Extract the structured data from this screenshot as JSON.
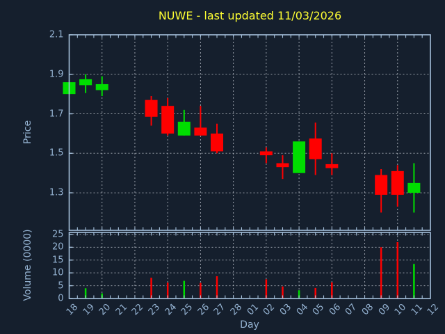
{
  "title": "NUWE - last updated 11/03/2026",
  "price_axis_label": "Price",
  "volume_axis_label": "Volume (0000)",
  "day_axis_label": "Day",
  "chart_data": {
    "type": "candlestick+volume-bar",
    "title": "NUWE - last updated 11/03/2026",
    "xlabel": "Day",
    "ylabel_price": "Price",
    "ylabel_volume": "Volume (0000)",
    "x_tick_labels": [
      "18",
      "19",
      "20",
      "21",
      "22",
      "23",
      "24",
      "25",
      "26",
      "27",
      "28",
      "01",
      "02",
      "03",
      "04",
      "05",
      "06",
      "07",
      "08",
      "09",
      "10",
      "11",
      "12"
    ],
    "price_tick_labels": [
      "2.1",
      "1.9",
      "1.7",
      "1.5",
      "1.3"
    ],
    "price_ticks": [
      2.1,
      1.9,
      1.7,
      1.5,
      1.3
    ],
    "price_ylim": [
      1.11,
      2.1
    ],
    "volume_tick_labels": [
      "25",
      "20",
      "15",
      "10",
      "5",
      "0"
    ],
    "volume_ticks": [
      25,
      20,
      15,
      10,
      5,
      0
    ],
    "volume_ylim": [
      0,
      25.8
    ],
    "grid": "dashed; vertical line every 2nd day; horizontal at each labeled tick",
    "legend": "none",
    "series": [
      {
        "day": "18",
        "open": 1.8,
        "high": 1.86,
        "low": 1.8,
        "close": 1.86,
        "volume": 0
      },
      {
        "day": "19",
        "open": 1.845,
        "high": 1.9,
        "low": 1.805,
        "close": 1.875,
        "volume": 4.0
      },
      {
        "day": "20",
        "open": 1.82,
        "high": 1.89,
        "low": 1.79,
        "close": 1.85,
        "volume": 2.0
      },
      {
        "day": "21",
        "open": null,
        "high": null,
        "low": null,
        "close": null,
        "volume": 0
      },
      {
        "day": "22",
        "open": null,
        "high": null,
        "low": null,
        "close": null,
        "volume": 0
      },
      {
        "day": "23",
        "open": 1.77,
        "high": 1.79,
        "low": 1.64,
        "close": 1.685,
        "volume": 8.1
      },
      {
        "day": "24",
        "open": 1.74,
        "high": 1.78,
        "low": 1.59,
        "close": 1.6,
        "volume": 6.2
      },
      {
        "day": "25",
        "open": 1.59,
        "high": 1.72,
        "low": 1.59,
        "close": 1.66,
        "volume": 6.9
      },
      {
        "day": "26",
        "open": 1.63,
        "high": 1.74,
        "low": 1.59,
        "close": 1.59,
        "volume": 6.1
      },
      {
        "day": "27",
        "open": 1.6,
        "high": 1.65,
        "low": 1.5,
        "close": 1.51,
        "volume": 8.7
      },
      {
        "day": "28",
        "open": null,
        "high": null,
        "low": null,
        "close": null,
        "volume": 0
      },
      {
        "day": "01",
        "open": null,
        "high": null,
        "low": null,
        "close": null,
        "volume": 0
      },
      {
        "day": "02",
        "open": 1.51,
        "high": 1.53,
        "low": 1.45,
        "close": 1.49,
        "volume": 7.5
      },
      {
        "day": "03",
        "open": 1.45,
        "high": 1.49,
        "low": 1.37,
        "close": 1.43,
        "volume": 4.7
      },
      {
        "day": "04",
        "open": 1.4,
        "high": 1.56,
        "low": 1.4,
        "close": 1.56,
        "volume": 3.2
      },
      {
        "day": "05",
        "open": 1.575,
        "high": 1.655,
        "low": 1.39,
        "close": 1.47,
        "volume": 4.1
      },
      {
        "day": "06",
        "open": 1.445,
        "high": 1.5,
        "low": 1.39,
        "close": 1.425,
        "volume": 6.3
      },
      {
        "day": "07",
        "open": null,
        "high": null,
        "low": null,
        "close": null,
        "volume": 0
      },
      {
        "day": "08",
        "open": null,
        "high": null,
        "low": null,
        "close": null,
        "volume": 0
      },
      {
        "day": "09",
        "open": 1.39,
        "high": 1.42,
        "low": 1.2,
        "close": 1.29,
        "volume": 20.0
      },
      {
        "day": "10",
        "open": 1.41,
        "high": 1.44,
        "low": 1.23,
        "close": 1.29,
        "volume": 22.0
      },
      {
        "day": "11",
        "open": 1.3,
        "high": 1.45,
        "low": 1.2,
        "close": 1.35,
        "volume": 13.5
      },
      {
        "day": "12",
        "open": null,
        "high": null,
        "low": null,
        "close": null,
        "volume": 0
      }
    ],
    "colors": {
      "up": "#00dd00",
      "down": "#ff0000",
      "background": "#151f2d",
      "axis": "#a6c1dc",
      "grid": "#c3c9d2",
      "tick_label": "#94b2d1",
      "title": "#ffff33"
    }
  }
}
